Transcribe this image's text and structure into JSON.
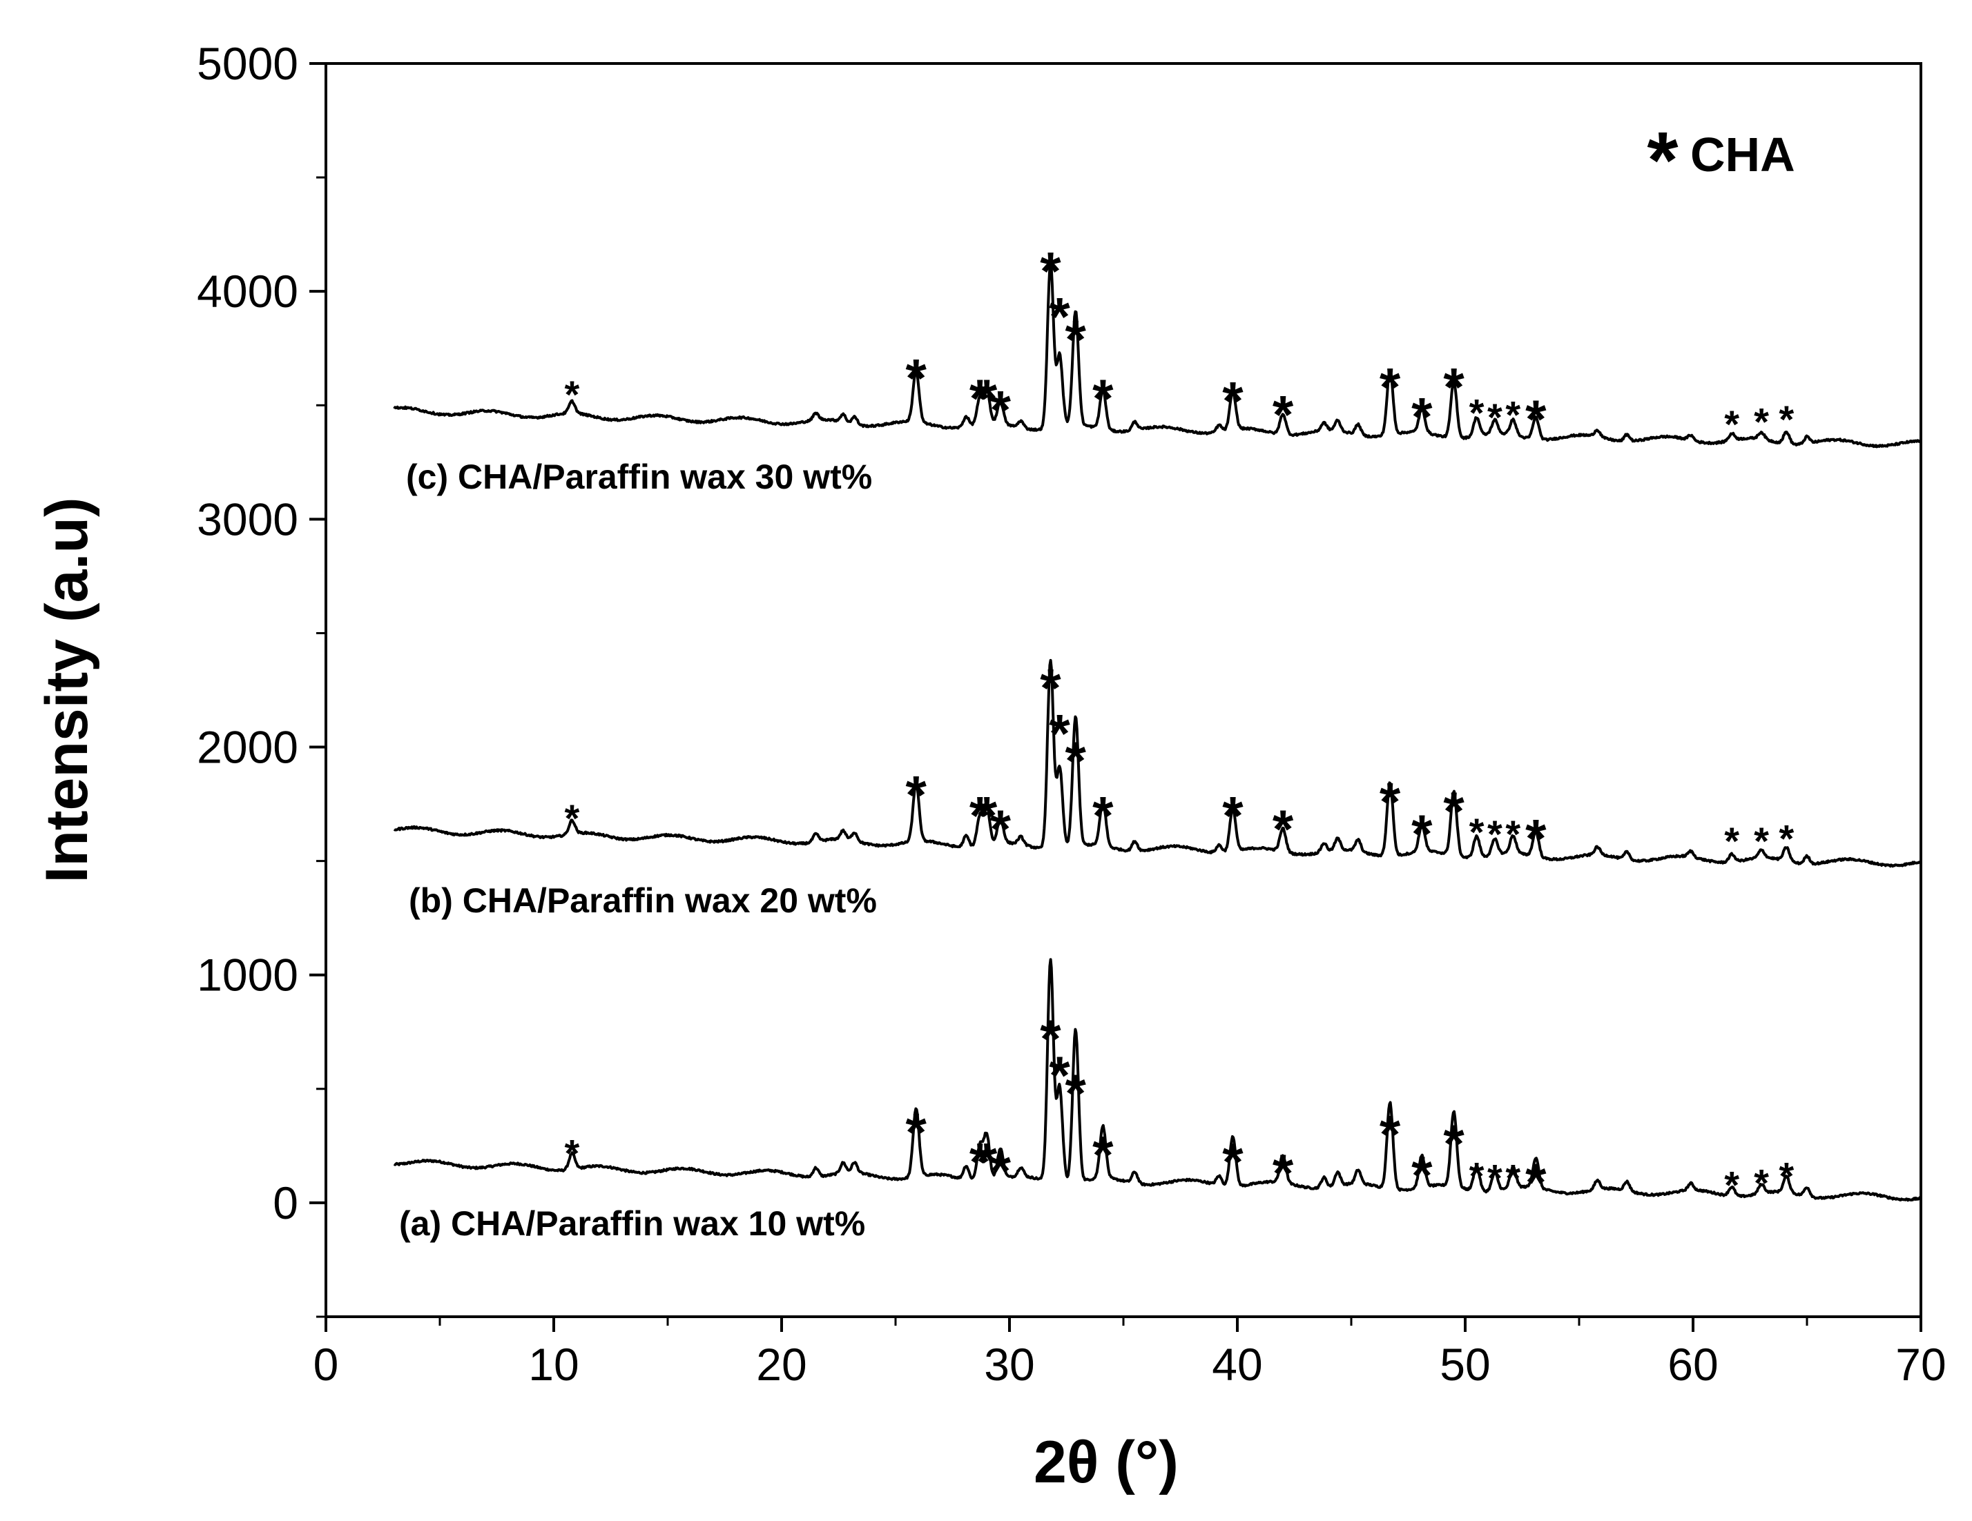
{
  "chart_data": {
    "type": "line",
    "title": "",
    "xlabel": "2θ (°)",
    "ylabel": "Intensity (a.u)",
    "xlim": [
      0,
      70
    ],
    "ylim": [
      -500,
      5000
    ],
    "x_ticks": [
      "0",
      "10",
      "20",
      "30",
      "40",
      "50",
      "60",
      "70"
    ],
    "y_ticks": [
      "0",
      "1000",
      "2000",
      "3000",
      "4000",
      "5000"
    ],
    "grid": false,
    "legend": {
      "position": "top-right",
      "marker": "*",
      "label": "CHA"
    },
    "colors": {
      "line": "#000000",
      "axis": "#000000",
      "background": "#ffffff"
    },
    "peak_positions": [
      10.8,
      25.9,
      28.7,
      29.0,
      29.6,
      31.8,
      32.2,
      32.9,
      34.1,
      39.8,
      42.0,
      46.7,
      48.1,
      49.5,
      50.5,
      51.3,
      52.1,
      53.1,
      61.7,
      63.0,
      64.1
    ],
    "peak_heights": [
      70,
      300,
      150,
      200,
      130,
      970,
      420,
      670,
      230,
      220,
      120,
      380,
      140,
      330,
      110,
      80,
      90,
      130,
      40,
      40,
      70
    ],
    "series": [
      {
        "name": "(a) CHA/Paraffin wax 10 wt%",
        "label": "(a) CHA/Paraffin wax 10 wt%",
        "baseline_start": 180,
        "baseline_end": 25,
        "peak_scale": 1.0,
        "peak_marks_y": [
          250,
          350,
          220,
          220,
          180,
          760,
          600,
          520,
          250,
          220,
          170,
          340,
          160,
          300,
          150,
          140,
          140,
          130,
          110,
          120,
          150
        ]
      },
      {
        "name": "(b) CHA/Paraffin wax 20 wt%",
        "label": "(b) CHA/Paraffin wax 20 wt%",
        "baseline_start": 1640,
        "baseline_end": 1490,
        "peak_scale": 0.85,
        "peak_marks_y": [
          1720,
          1830,
          1740,
          1740,
          1680,
          2300,
          2100,
          1980,
          1740,
          1740,
          1680,
          1800,
          1660,
          1760,
          1660,
          1650,
          1650,
          1640,
          1620,
          1620,
          1630
        ]
      },
      {
        "name": "(c) CHA/Paraffin wax 30 wt%",
        "label": "(c) CHA/Paraffin wax 30 wt%",
        "baseline_start": 3480,
        "baseline_end": 3330,
        "peak_scale": 0.75,
        "peak_marks_y": [
          3580,
          3660,
          3570,
          3570,
          3520,
          4130,
          3930,
          3830,
          3570,
          3560,
          3500,
          3620,
          3490,
          3620,
          3500,
          3480,
          3490,
          3480,
          3450,
          3460,
          3470
        ]
      }
    ]
  }
}
